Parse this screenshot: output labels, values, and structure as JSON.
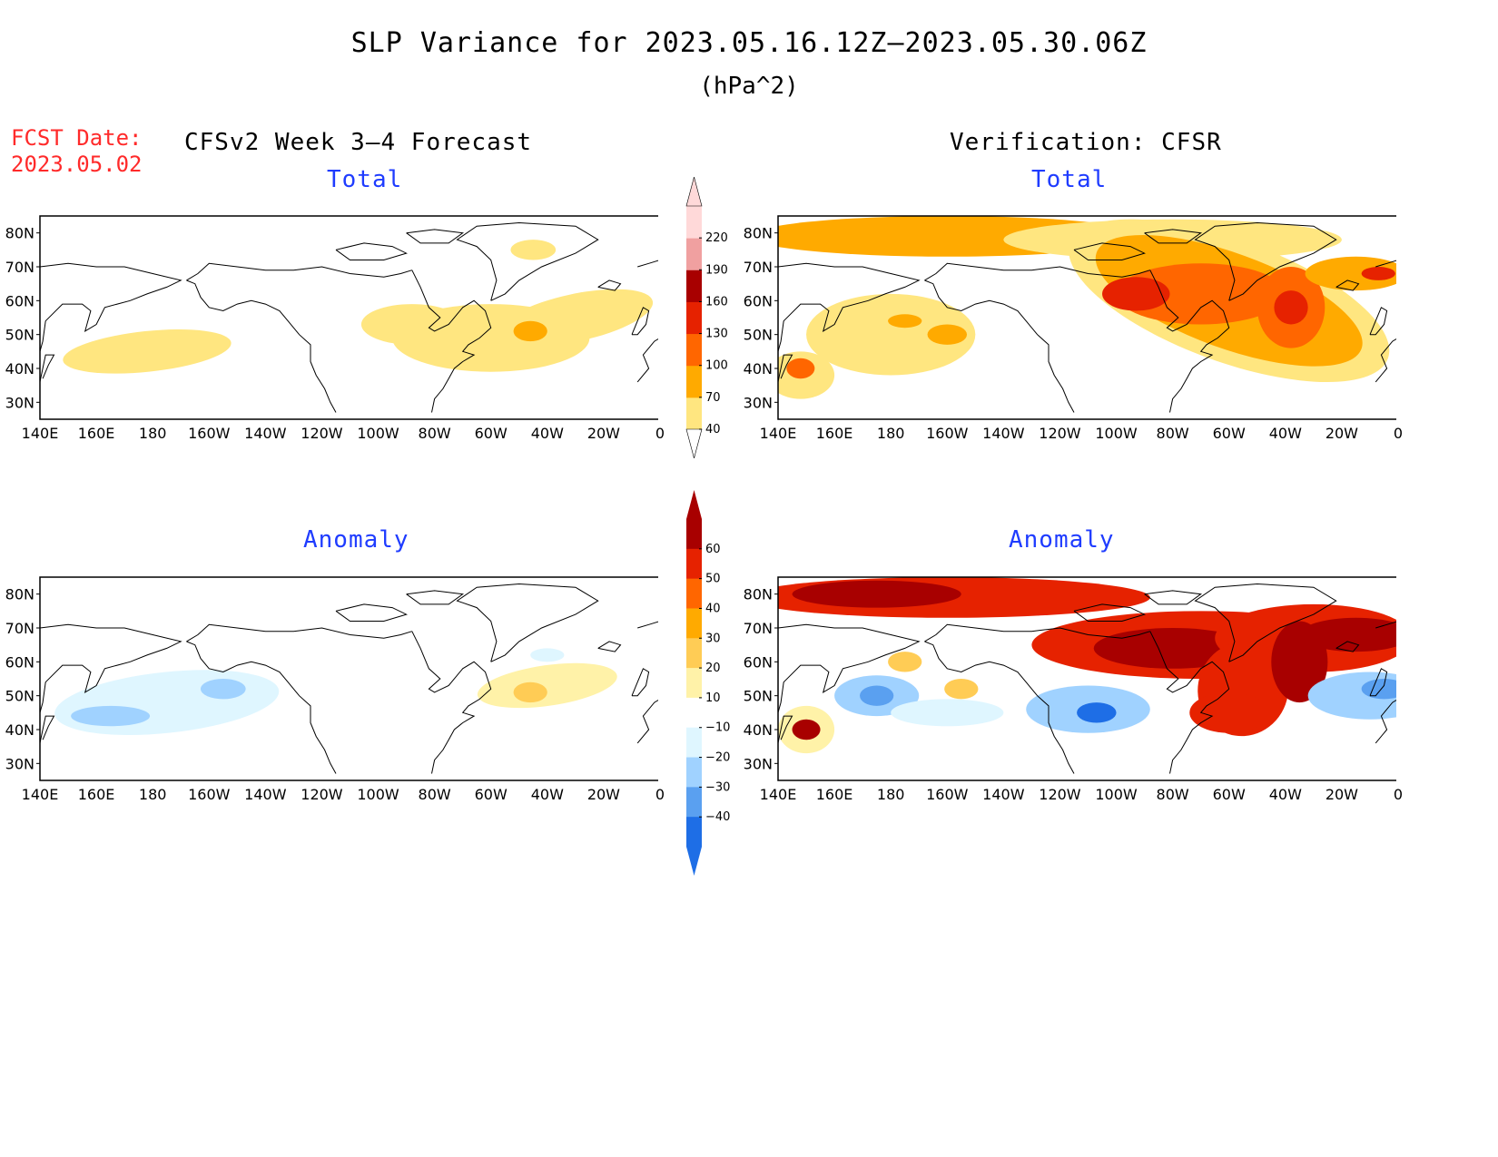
{
  "header": {
    "title": "SLP Variance for 2023.05.16.12Z–2023.05.30.06Z",
    "units": "(hPa^2)",
    "fcst_date_label": "FCST Date:",
    "fcst_date_value": "2023.05.02"
  },
  "columns": {
    "left_title": "CFSv2 Week 3–4 Forecast",
    "right_title": "Verification: CFSR"
  },
  "panels": {
    "total_title": "Total",
    "anomaly_title": "Anomaly"
  },
  "axes": {
    "lat_labels": [
      "80N",
      "70N",
      "60N",
      "50N",
      "40N",
      "30N"
    ],
    "lon_labels": [
      "140E",
      "160E",
      "180",
      "160W",
      "140W",
      "120W",
      "100W",
      "80W",
      "60W",
      "40W",
      "20W",
      "0"
    ]
  },
  "colorbars": {
    "total": {
      "levels": [
        "40",
        "70",
        "100",
        "130",
        "160",
        "190",
        "220"
      ],
      "colors": [
        "#ffe680",
        "#ffaa00",
        "#ff6600",
        "#e62200",
        "#a80000",
        "#f0a0a0",
        "#ffd9d9"
      ]
    },
    "anomaly": {
      "levels": [
        "60",
        "50",
        "40",
        "30",
        "20",
        "10",
        "−10",
        "−20",
        "−30",
        "−40"
      ],
      "colors": [
        "#a80000",
        "#e62200",
        "#ff6600",
        "#ffaa00",
        "#ffcc55",
        "#fff2a8",
        "#ffffff",
        "#dff6ff",
        "#a0d2ff",
        "#5aa0f0",
        "#1e6ee6"
      ]
    }
  }
}
